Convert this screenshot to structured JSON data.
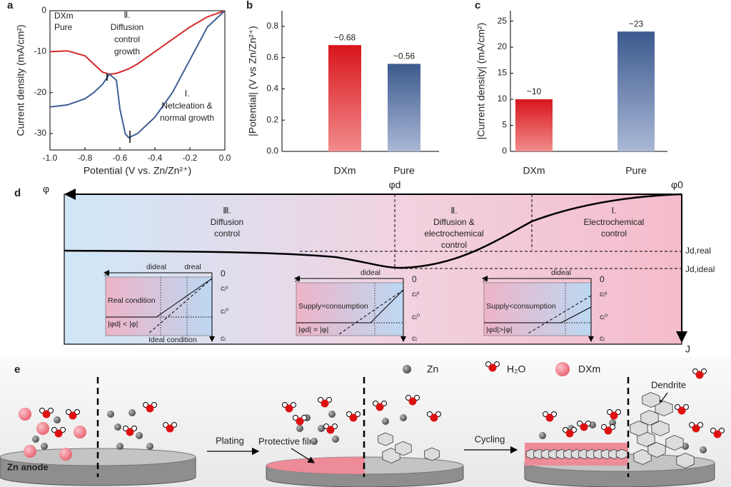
{
  "chart_data": [
    {
      "type": "line",
      "label": "a",
      "xlabel": "Potential (V vs. Zn/Zn²⁺)",
      "ylabel": "Current density (mA/cm²)",
      "x": [
        -1,
        -0.9,
        -0.8,
        -0.75,
        -0.7,
        -0.66,
        -0.62,
        -0.6,
        -0.57,
        -0.55,
        -0.5,
        -0.4,
        -0.3,
        -0.2,
        -0.1,
        0
      ],
      "series": [
        {
          "name": "DXm",
          "color": "#d42a2a",
          "values": [
            -10,
            -9.8,
            -11,
            -13,
            -15,
            -15.5,
            -15.3,
            -15,
            -14.5,
            -14.2,
            -13,
            -10,
            -7,
            -4,
            -1.5,
            0
          ]
        },
        {
          "name": "Pure",
          "color": "#3f5f95",
          "values": [
            -23.5,
            -23,
            -21.5,
            -20,
            -18,
            -15.5,
            -17,
            -24,
            -30,
            -31,
            -30,
            -26,
            -20,
            -12,
            -4,
            0
          ]
        }
      ],
      "xlim": [
        -1,
        0
      ],
      "xticks": [
        {
          "value": -1,
          "label": "-1.0"
        },
        {
          "value": -0.8,
          "label": "-0.8"
        },
        {
          "value": -0.6,
          "label": "-0.6"
        },
        {
          "value": -0.4,
          "label": "-0.4"
        },
        {
          "value": -0.2,
          "label": "-0.2"
        },
        {
          "value": 0,
          "label": "0.0"
        }
      ],
      "ylim": [
        -34,
        0
      ],
      "yticks": [
        -30,
        -20,
        -10,
        0
      ],
      "annotations": [
        [
          "Ⅱ.",
          "Diffusion",
          "control",
          "growth"
        ],
        [
          "Ⅰ.",
          "Netcleation &",
          "normal growth"
        ]
      ]
    },
    {
      "type": "bar",
      "label": "b",
      "ylabel": "|Potential| (V vs Zn/Zn²⁺)",
      "categories": [
        "DXm",
        "Pure"
      ],
      "values": [
        0.68,
        0.56
      ],
      "value_labels": [
        "~0.68",
        "~0.56"
      ],
      "colors": [
        "#d42a2a",
        "#3f5f95"
      ],
      "ylim": [
        0,
        0.9
      ],
      "yticks": [
        {
          "value": 0,
          "label": "0.0"
        },
        0.2,
        0.4,
        0.6,
        0.8
      ]
    },
    {
      "type": "bar",
      "label": "c",
      "ylabel": "|Current density| (mA/cm²)",
      "categories": [
        "DXm",
        "Pure"
      ],
      "values": [
        10,
        23
      ],
      "value_labels": [
        "~10",
        "~23"
      ],
      "colors": [
        "#d42a2a",
        "#3f5f95"
      ],
      "ylim": [
        0,
        27
      ],
      "yticks": [
        0,
        5,
        10,
        15,
        20,
        25
      ]
    }
  ],
  "diagram_d": {
    "label": "d",
    "phi": "φ",
    "phi_d": "φd",
    "phi_0": "φ0",
    "j": "J",
    "j_real": "Jd,real",
    "j_ideal": "Jd,ideal",
    "regions": [
      [
        "Ⅲ.",
        "Diffusion",
        "control"
      ],
      [
        "Ⅱ.",
        "Diffusion &",
        "electrochemical",
        "control"
      ],
      [
        "Ⅰ.",
        "Electrochemical",
        "control"
      ]
    ],
    "insets": [
      {
        "x": "x",
        "zero": "0",
        "d": [
          "dideal",
          "dreal"
        ],
        "cs": "cᵢˢ",
        "c0": "cᵢ⁰",
        "c": "cᵢ",
        "texts": [
          "Real condition",
          "|φd| < |φ|",
          "Ideal condition"
        ]
      },
      {
        "x": "x",
        "zero": "0",
        "d": [
          "dideal"
        ],
        "cs": "cᵢˢ",
        "c0": "cᵢ⁰",
        "c": "cᵢ",
        "texts": [
          "Supply=consumption",
          "|φd| = |φ|"
        ]
      },
      {
        "x": "x",
        "zero": "0",
        "d": [
          "dideal"
        ],
        "cs": "cᵢˢ",
        "c0": "cᵢ⁰",
        "c": "cᵢ",
        "texts": [
          "Supply<consumption",
          "|φd|>|φ|"
        ]
      }
    ]
  },
  "diagram_e": {
    "label": "e",
    "legend": [
      "Zn",
      "H₂O",
      "DXm"
    ],
    "anode": "Zn anode",
    "plating": "Plating",
    "film": "Protective film",
    "cycling": "Cycling",
    "dendrite": "Dendrite"
  }
}
